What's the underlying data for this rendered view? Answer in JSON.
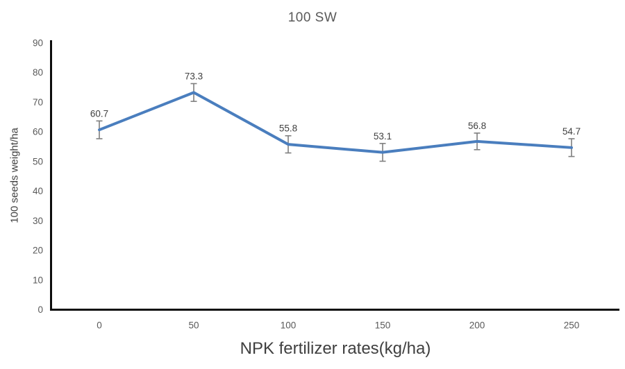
{
  "chart_data": {
    "type": "line",
    "title": "100 SW",
    "xlabel": "NPK fertilizer rates(kg/ha)",
    "ylabel": "100 seeds weight/ha",
    "categories": [
      0,
      50,
      100,
      150,
      200,
      250
    ],
    "series": [
      {
        "name": "100 SW",
        "values": [
          60.7,
          73.3,
          55.8,
          53.1,
          56.8,
          54.7
        ],
        "errors": [
          3.0,
          3.0,
          2.9,
          3.0,
          2.8,
          3.0
        ],
        "color": "#4A7EBE"
      }
    ],
    "ylim": [
      0,
      90
    ],
    "yticks": [
      0,
      10,
      20,
      30,
      40,
      50,
      60,
      70,
      80,
      90
    ],
    "grid": false,
    "legend": "none",
    "data_labels": true,
    "error_bar_color": "#7F7F7F",
    "axis_color": "#0d0d0d",
    "tick_label_color": "#595959",
    "data_label_color": "#404040"
  }
}
